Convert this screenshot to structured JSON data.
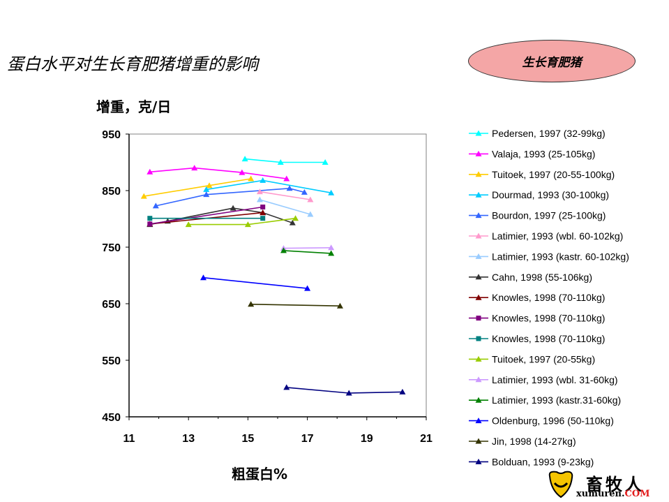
{
  "title": "蛋白水平对生长育肥猪增重的影响",
  "badge": "生长育肥猪",
  "logo": {
    "cn": "畜牧人",
    "en_main": "xumuren.",
    "en_com": "COM"
  },
  "chart_data": {
    "type": "line",
    "xlabel": "粗蛋白%",
    "ylabel": "增重，克/日",
    "xlim": [
      11,
      21
    ],
    "ylim": [
      450,
      950
    ],
    "xticks": [
      11,
      13,
      15,
      17,
      19,
      21
    ],
    "yticks": [
      450,
      550,
      650,
      750,
      850,
      950
    ],
    "grid": false,
    "legend": "right",
    "series": [
      {
        "name": "Pedersen, 1997 (32-99kg)",
        "color": "#00ffff",
        "marker": "triangle",
        "x": [
          14.9,
          16.1,
          17.6
        ],
        "y": [
          906,
          900,
          900
        ]
      },
      {
        "name": "Valaja, 1993 (25-105kg)",
        "color": "#ff00ff",
        "marker": "triangle",
        "x": [
          11.7,
          13.2,
          14.8,
          16.3
        ],
        "y": [
          883,
          890,
          882,
          871
        ]
      },
      {
        "name": "Tuitoek, 1997 (20-55-100kg)",
        "color": "#ffcc00",
        "marker": "triangle",
        "x": [
          11.5,
          13.7,
          15.1
        ],
        "y": [
          840,
          859,
          871
        ]
      },
      {
        "name": "Dourmad, 1993 (30-100kg)",
        "color": "#00ccff",
        "marker": "triangle",
        "x": [
          13.6,
          15.5,
          17.8
        ],
        "y": [
          852,
          868,
          846
        ]
      },
      {
        "name": "Bourdon, 1997 (25-100kg)",
        "color": "#3366ff",
        "marker": "triangle",
        "x": [
          11.9,
          13.6,
          16.4,
          16.9
        ],
        "y": [
          823,
          843,
          854,
          847
        ]
      },
      {
        "name": "Latimier, 1993 (wbl. 60-102kg)",
        "color": "#ff99cc",
        "marker": "triangle",
        "x": [
          15.4,
          17.1
        ],
        "y": [
          848,
          834
        ]
      },
      {
        "name": "Latimier, 1993 (kastr. 60-102kg)",
        "color": "#99ccff",
        "marker": "triangle",
        "x": [
          15.4,
          17.1
        ],
        "y": [
          834,
          808
        ]
      },
      {
        "name": "Cahn, 1998 (55-106kg)",
        "color": "#333333",
        "marker": "triangle",
        "x": [
          11.7,
          12.3,
          14.5,
          15.5,
          16.5
        ],
        "y": [
          790,
          796,
          819,
          811,
          793
        ]
      },
      {
        "name": "Knowles, 1998 (70-110kg)",
        "color": "#800000",
        "marker": "triangle",
        "x": [
          11.7,
          15.5
        ],
        "y": [
          791,
          811
        ]
      },
      {
        "name": "Knowles, 1998 (70-110kg)",
        "color": "#800080",
        "marker": "square",
        "x": [
          11.7,
          15.5
        ],
        "y": [
          791,
          821
        ]
      },
      {
        "name": "Knowles, 1998 (70-110kg)",
        "color": "#008080",
        "marker": "square",
        "x": [
          11.7,
          15.5
        ],
        "y": [
          801,
          801
        ]
      },
      {
        "name": "Tuitoek, 1997 (20-55kg)",
        "color": "#99cc00",
        "marker": "triangle",
        "x": [
          13.0,
          15.0,
          16.6
        ],
        "y": [
          790,
          790,
          801
        ]
      },
      {
        "name": "Latimier, 1993 (wbl. 31-60kg)",
        "color": "#cc99ff",
        "marker": "triangle",
        "x": [
          16.2,
          17.8
        ],
        "y": [
          748,
          749
        ]
      },
      {
        "name": "Latimier, 1993 (kastr.31-60kg)",
        "color": "#008000",
        "marker": "triangle",
        "x": [
          16.2,
          17.8
        ],
        "y": [
          744,
          739
        ]
      },
      {
        "name": "Oldenburg, 1996 (50-110kg)",
        "color": "#0000ff",
        "marker": "triangle",
        "x": [
          13.5,
          17.0
        ],
        "y": [
          696,
          677
        ]
      },
      {
        "name": "Jin, 1998 (14-27kg)",
        "color": "#333300",
        "marker": "triangle",
        "x": [
          15.1,
          18.1
        ],
        "y": [
          649,
          646
        ]
      },
      {
        "name": "Bolduan, 1993 (9-23kg)",
        "color": "#000080",
        "marker": "triangle",
        "x": [
          16.3,
          18.4,
          20.2
        ],
        "y": [
          502,
          492,
          494
        ]
      }
    ]
  }
}
